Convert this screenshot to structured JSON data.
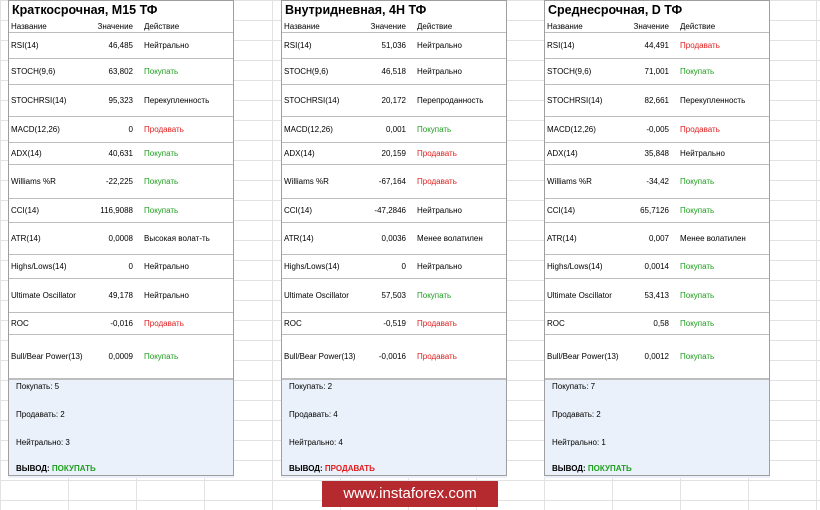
{
  "headers": {
    "name": "Название",
    "value": "Значение",
    "action": "Действие"
  },
  "panels": [
    {
      "title": "Краткосрочная, М15 ТФ",
      "rows": [
        {
          "name": "RSI(14)",
          "value": "46,485",
          "action": "Нейтрально",
          "type": "neutral"
        },
        {
          "name": "STOCH(9,6)",
          "value": "63,802",
          "action": "Покупать",
          "type": "buy"
        },
        {
          "name": "STOCHRSI(14)",
          "value": "95,323",
          "action": "Перекупленность",
          "type": "neutral"
        },
        {
          "name": "MACD(12,26)",
          "value": "0",
          "action": "Продавать",
          "type": "sell"
        },
        {
          "name": "ADX(14)",
          "value": "40,631",
          "action": "Покупать",
          "type": "buy"
        },
        {
          "name": "Williams %R",
          "value": "-22,225",
          "action": "Покупать",
          "type": "buy"
        },
        {
          "name": "CCI(14)",
          "value": "116,9088",
          "action": "Покупать",
          "type": "buy"
        },
        {
          "name": "ATR(14)",
          "value": "0,0008",
          "action": "Высокая волат-ть",
          "type": "neutral"
        },
        {
          "name": "Highs/Lows(14)",
          "value": "0",
          "action": "Нейтрально",
          "type": "neutral"
        },
        {
          "name": "Ultimate Oscillator",
          "value": "49,178",
          "action": "Нейтрально",
          "type": "neutral"
        },
        {
          "name": "ROC",
          "value": "-0,016",
          "action": "Продавать",
          "type": "sell"
        },
        {
          "name": "Bull/Bear Power(13)",
          "value": "0,0009",
          "action": "Покупать",
          "type": "buy"
        }
      ],
      "summary": {
        "buy": "Покупать: 5",
        "sell": "Продавать: 2",
        "neutral": "Нейтрально: 3",
        "verdict_label": "ВЫВОД:",
        "verdict": "ПОКУПАТЬ",
        "verdict_type": "buy"
      }
    },
    {
      "title": "Внутридневная, 4Н ТФ",
      "rows": [
        {
          "name": "RSI(14)",
          "value": "51,036",
          "action": "Нейтрально",
          "type": "neutral"
        },
        {
          "name": "STOCH(9,6)",
          "value": "46,518",
          "action": "Нейтрально",
          "type": "neutral"
        },
        {
          "name": "STOCHRSI(14)",
          "value": "20,172",
          "action": "Перепроданность",
          "type": "neutral"
        },
        {
          "name": "MACD(12,26)",
          "value": "0,001",
          "action": "Покупать",
          "type": "buy"
        },
        {
          "name": "ADX(14)",
          "value": "20,159",
          "action": "Продавать",
          "type": "sell"
        },
        {
          "name": "Williams %R",
          "value": "-67,164",
          "action": "Продавать",
          "type": "sell"
        },
        {
          "name": "CCI(14)",
          "value": "-47,2846",
          "action": "Нейтрально",
          "type": "neutral"
        },
        {
          "name": "ATR(14)",
          "value": "0,0036",
          "action": "Менее волатилен",
          "type": "neutral"
        },
        {
          "name": "Highs/Lows(14)",
          "value": "0",
          "action": "Нейтрально",
          "type": "neutral"
        },
        {
          "name": "Ultimate Oscillator",
          "value": "57,503",
          "action": "Покупать",
          "type": "buy"
        },
        {
          "name": "ROC",
          "value": "-0,519",
          "action": "Продавать",
          "type": "sell"
        },
        {
          "name": "Bull/Bear Power(13)",
          "value": "-0,0016",
          "action": "Продавать",
          "type": "sell"
        }
      ],
      "summary": {
        "buy": "Покупать: 2",
        "sell": "Продавать: 4",
        "neutral": "Нейтрально: 4",
        "verdict_label": "ВЫВОД:",
        "verdict": "ПРОДАВАТЬ",
        "verdict_type": "sell"
      }
    },
    {
      "title": "Среднесрочная, D ТФ",
      "rows": [
        {
          "name": "RSI(14)",
          "value": "44,491",
          "action": "Продавать",
          "type": "sell"
        },
        {
          "name": "STOCH(9,6)",
          "value": "71,001",
          "action": "Покупать",
          "type": "buy"
        },
        {
          "name": "STOCHRSI(14)",
          "value": "82,661",
          "action": "Перекупленность",
          "type": "neutral"
        },
        {
          "name": "MACD(12,26)",
          "value": "-0,005",
          "action": "Продавать",
          "type": "sell"
        },
        {
          "name": "ADX(14)",
          "value": "35,848",
          "action": "Нейтрально",
          "type": "neutral"
        },
        {
          "name": "Williams %R",
          "value": "-34,42",
          "action": "Покупать",
          "type": "buy"
        },
        {
          "name": "CCI(14)",
          "value": "65,7126",
          "action": "Покупать",
          "type": "buy"
        },
        {
          "name": "ATR(14)",
          "value": "0,007",
          "action": "Менее волатилен",
          "type": "neutral"
        },
        {
          "name": "Highs/Lows(14)",
          "value": "0,0014",
          "action": "Покупать",
          "type": "buy"
        },
        {
          "name": "Ultimate Oscillator",
          "value": "53,413",
          "action": "Покупать",
          "type": "buy"
        },
        {
          "name": "ROC",
          "value": "0,58",
          "action": "Покупать",
          "type": "buy"
        },
        {
          "name": "Bull/Bear Power(13)",
          "value": "0,0012",
          "action": "Покупать",
          "type": "buy"
        }
      ],
      "summary": {
        "buy": "Покупать: 7",
        "sell": "Продавать: 2",
        "neutral": "Нейтрально: 1",
        "verdict_label": "ВЫВОД:",
        "verdict": "ПОКУПАТЬ",
        "verdict_type": "buy"
      }
    }
  ],
  "watermark": "www.instaforex.com"
}
